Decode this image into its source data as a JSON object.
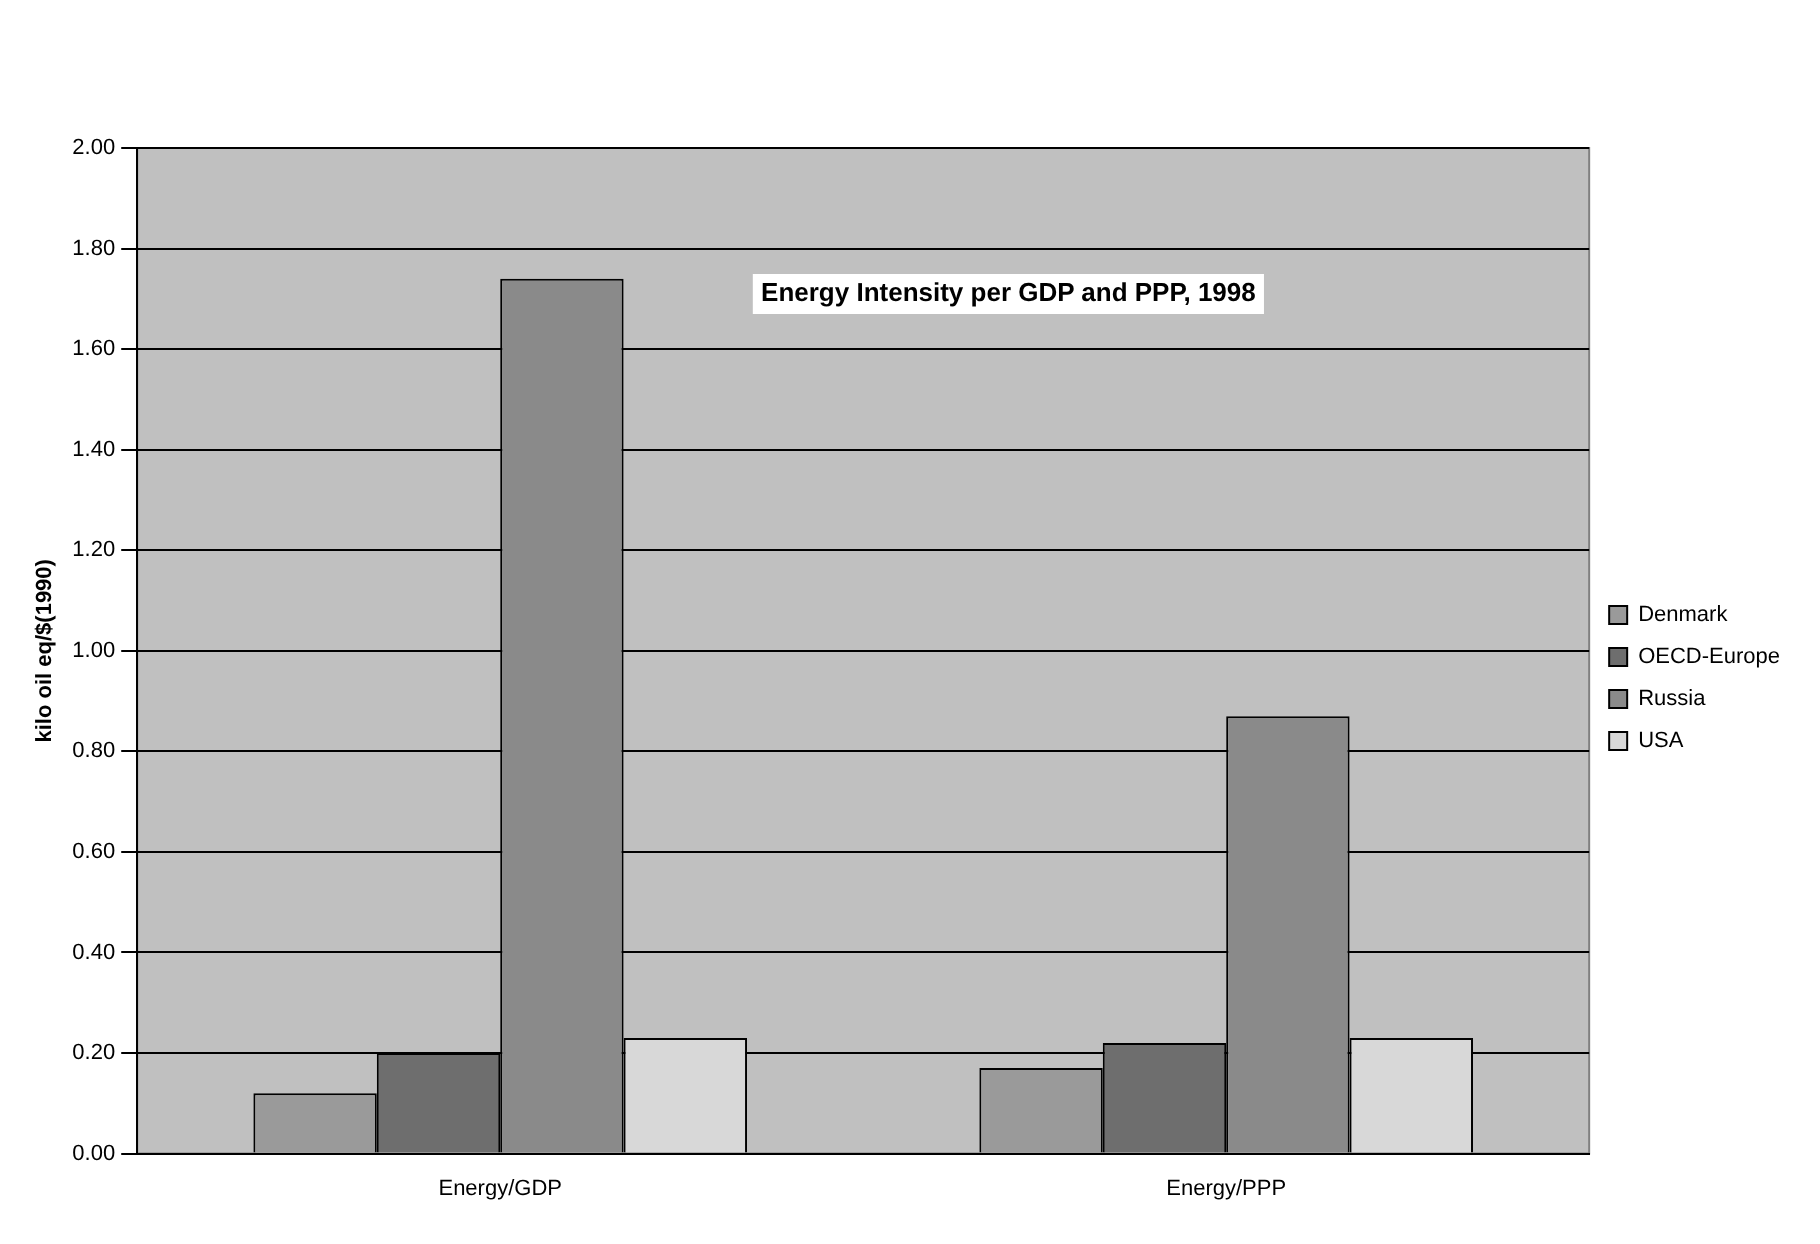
{
  "chart_data": {
    "type": "bar",
    "title": "Energy Intensity per GDP and PPP, 1998",
    "ylabel": "kilo oil eq/$(1990)",
    "categories": [
      "Energy/GDP",
      "Energy/PPP"
    ],
    "series": [
      {
        "name": "Denmark",
        "color": "#9a9a9a",
        "values": [
          0.12,
          0.17
        ]
      },
      {
        "name": "OECD-Europe",
        "color": "#6e6e6e",
        "values": [
          0.2,
          0.22
        ]
      },
      {
        "name": "Russia",
        "color": "#8a8a8a",
        "values": [
          1.74,
          0.87
        ]
      },
      {
        "name": "USA",
        "color": "#d8d8d8",
        "values": [
          0.23,
          0.23
        ]
      }
    ],
    "ylim": [
      0,
      2
    ],
    "yticks": [
      {
        "value": 0,
        "label": "0.00"
      },
      {
        "value": 0.2,
        "label": "0.20"
      },
      {
        "value": 0.4,
        "label": "0.40"
      },
      {
        "value": 0.6,
        "label": "0.60"
      },
      {
        "value": 0.8,
        "label": "0.80"
      },
      {
        "value": 1,
        "label": "1.00"
      },
      {
        "value": 1.2,
        "label": "1.20"
      },
      {
        "value": 1.4,
        "label": "1.40"
      },
      {
        "value": 1.6,
        "label": "1.60"
      },
      {
        "value": 1.8,
        "label": "1.80"
      },
      {
        "value": 2,
        "label": "2.00"
      }
    ],
    "grid": "y",
    "legend": "right"
  }
}
